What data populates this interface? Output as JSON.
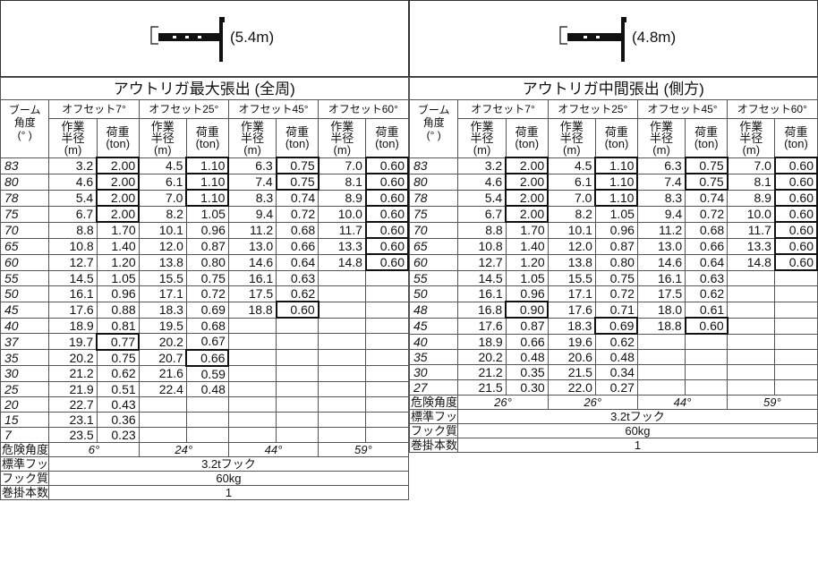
{
  "left": {
    "boom_length": "(5.4m)",
    "title": "アウトリガ最大張出 (全周)",
    "boom_header": "ブーム",
    "angle_header": "角度\n(° )",
    "offsets": [
      "オフセット7°",
      "オフセット25°",
      "オフセット45°",
      "オフセット60°"
    ],
    "radius_header": "作業\n半径\n(m)",
    "load_header": "荷重\n(ton)",
    "rows": [
      {
        "angle": "83",
        "cells": [
          "3.2",
          "2.00",
          "4.5",
          "1.10",
          "6.3",
          "0.75",
          "7.0",
          "0.60"
        ],
        "hl": [
          1,
          3,
          5,
          7
        ]
      },
      {
        "angle": "80",
        "cells": [
          "4.6",
          "2.00",
          "6.1",
          "1.10",
          "7.4",
          "0.75",
          "8.1",
          "0.60"
        ],
        "hl": [
          1,
          3,
          5,
          7
        ]
      },
      {
        "angle": "78",
        "cells": [
          "5.4",
          "2.00",
          "7.0",
          "1.10",
          "8.3",
          "0.74",
          "8.9",
          "0.60"
        ],
        "hl": [
          1,
          3,
          7
        ]
      },
      {
        "angle": "75",
        "cells": [
          "6.7",
          "2.00",
          "8.2",
          "1.05",
          "9.4",
          "0.72",
          "10.0",
          "0.60"
        ],
        "hl": [
          1,
          7
        ]
      },
      {
        "angle": "70",
        "cells": [
          "8.8",
          "1.70",
          "10.1",
          "0.96",
          "11.2",
          "0.68",
          "11.7",
          "0.60"
        ],
        "hl": [
          7
        ]
      },
      {
        "angle": "65",
        "cells": [
          "10.8",
          "1.40",
          "12.0",
          "0.87",
          "13.0",
          "0.66",
          "13.3",
          "0.60"
        ],
        "hl": [
          7
        ]
      },
      {
        "angle": "60",
        "cells": [
          "12.7",
          "1.20",
          "13.8",
          "0.80",
          "14.6",
          "0.64",
          "14.8",
          "0.60"
        ],
        "hl": [
          7
        ]
      },
      {
        "angle": "55",
        "cells": [
          "14.5",
          "1.05",
          "15.5",
          "0.75",
          "16.1",
          "0.63",
          "",
          ""
        ],
        "hl": []
      },
      {
        "angle": "50",
        "cells": [
          "16.1",
          "0.96",
          "17.1",
          "0.72",
          "17.5",
          "0.62",
          "",
          ""
        ],
        "hl": []
      },
      {
        "angle": "45",
        "cells": [
          "17.6",
          "0.88",
          "18.3",
          "0.69",
          "18.8",
          "0.60",
          "",
          ""
        ],
        "hl": [
          5
        ]
      },
      {
        "angle": "40",
        "cells": [
          "18.9",
          "0.81",
          "19.5",
          "0.68",
          "",
          "",
          "",
          ""
        ],
        "hl": []
      },
      {
        "angle": "37",
        "cells": [
          "19.7",
          "0.77",
          "20.2",
          "0.67",
          "",
          "",
          "",
          ""
        ],
        "hl": [
          1
        ]
      },
      {
        "angle": "35",
        "cells": [
          "20.2",
          "0.75",
          "20.7",
          "0.66",
          "",
          "",
          "",
          ""
        ],
        "hl": [
          3
        ]
      },
      {
        "angle": "30",
        "cells": [
          "21.2",
          "0.62",
          "21.6",
          "0.59",
          "",
          "",
          "",
          ""
        ],
        "hl": []
      },
      {
        "angle": "25",
        "cells": [
          "21.9",
          "0.51",
          "22.4",
          "0.48",
          "",
          "",
          "",
          ""
        ],
        "hl": []
      },
      {
        "angle": "20",
        "cells": [
          "22.7",
          "0.43",
          "",
          "",
          "",
          "",
          "",
          ""
        ],
        "hl": []
      },
      {
        "angle": "15",
        "cells": [
          "23.1",
          "0.36",
          "",
          "",
          "",
          "",
          "",
          ""
        ],
        "hl": []
      },
      {
        "angle": "7",
        "cells": [
          "23.5",
          "0.23",
          "",
          "",
          "",
          "",
          "",
          ""
        ],
        "hl": []
      }
    ],
    "danger_label": "危険角度",
    "danger_values": [
      "6°",
      "24°",
      "44°",
      "59°"
    ],
    "hook_label": "標準フック",
    "hook_value": "3.2tフック",
    "hook_mass_label": "フック質量",
    "hook_mass_value": "60kg",
    "reeving_label": "巻掛本数",
    "reeving_value": "1"
  },
  "right": {
    "boom_length": "(4.8m)",
    "title": "アウトリガ中間張出 (側方)",
    "boom_header": "ブーム",
    "angle_header": "角度\n(° )",
    "offsets": [
      "オフセット7°",
      "オフセット25°",
      "オフセット45°",
      "オフセット60°"
    ],
    "radius_header": "作業\n半径\n(m)",
    "load_header": "荷重\n(ton)",
    "rows": [
      {
        "angle": "83",
        "cells": [
          "3.2",
          "2.00",
          "4.5",
          "1.10",
          "6.3",
          "0.75",
          "7.0",
          "0.60"
        ],
        "hl": [
          1,
          3,
          5,
          7
        ]
      },
      {
        "angle": "80",
        "cells": [
          "4.6",
          "2.00",
          "6.1",
          "1.10",
          "7.4",
          "0.75",
          "8.1",
          "0.60"
        ],
        "hl": [
          1,
          3,
          5,
          7
        ]
      },
      {
        "angle": "78",
        "cells": [
          "5.4",
          "2.00",
          "7.0",
          "1.10",
          "8.3",
          "0.74",
          "8.9",
          "0.60"
        ],
        "hl": [
          1,
          3,
          7
        ]
      },
      {
        "angle": "75",
        "cells": [
          "6.7",
          "2.00",
          "8.2",
          "1.05",
          "9.4",
          "0.72",
          "10.0",
          "0.60"
        ],
        "hl": [
          1,
          7
        ]
      },
      {
        "angle": "70",
        "cells": [
          "8.8",
          "1.70",
          "10.1",
          "0.96",
          "11.2",
          "0.68",
          "11.7",
          "0.60"
        ],
        "hl": [
          7
        ]
      },
      {
        "angle": "65",
        "cells": [
          "10.8",
          "1.40",
          "12.0",
          "0.87",
          "13.0",
          "0.66",
          "13.3",
          "0.60"
        ],
        "hl": [
          7
        ]
      },
      {
        "angle": "60",
        "cells": [
          "12.7",
          "1.20",
          "13.8",
          "0.80",
          "14.6",
          "0.64",
          "14.8",
          "0.60"
        ],
        "hl": [
          7
        ]
      },
      {
        "angle": "55",
        "cells": [
          "14.5",
          "1.05",
          "15.5",
          "0.75",
          "16.1",
          "0.63",
          "",
          ""
        ],
        "hl": []
      },
      {
        "angle": "50",
        "cells": [
          "16.1",
          "0.96",
          "17.1",
          "0.72",
          "17.5",
          "0.62",
          "",
          ""
        ],
        "hl": []
      },
      {
        "angle": "48",
        "cells": [
          "16.8",
          "0.90",
          "17.6",
          "0.71",
          "18.0",
          "0.61",
          "",
          ""
        ],
        "hl": [
          1
        ]
      },
      {
        "angle": "45",
        "cells": [
          "17.6",
          "0.87",
          "18.3",
          "0.69",
          "18.8",
          "0.60",
          "",
          ""
        ],
        "hl": [
          3,
          5
        ]
      },
      {
        "angle": "40",
        "cells": [
          "18.9",
          "0.66",
          "19.6",
          "0.62",
          "",
          "",
          "",
          ""
        ],
        "hl": []
      },
      {
        "angle": "35",
        "cells": [
          "20.2",
          "0.48",
          "20.6",
          "0.48",
          "",
          "",
          "",
          ""
        ],
        "hl": []
      },
      {
        "angle": "30",
        "cells": [
          "21.2",
          "0.35",
          "21.5",
          "0.34",
          "",
          "",
          "",
          ""
        ],
        "hl": []
      },
      {
        "angle": "27",
        "cells": [
          "21.5",
          "0.30",
          "22.0",
          "0.27",
          "",
          "",
          "",
          ""
        ],
        "hl": []
      }
    ],
    "danger_label": "危険角度",
    "danger_values": [
      "26°",
      "26°",
      "44°",
      "59°"
    ],
    "hook_label": "標準フック",
    "hook_value": "3.2tフック",
    "hook_mass_label": "フック質量",
    "hook_mass_value": "60kg",
    "reeving_label": "巻掛本数",
    "reeving_value": "1"
  }
}
